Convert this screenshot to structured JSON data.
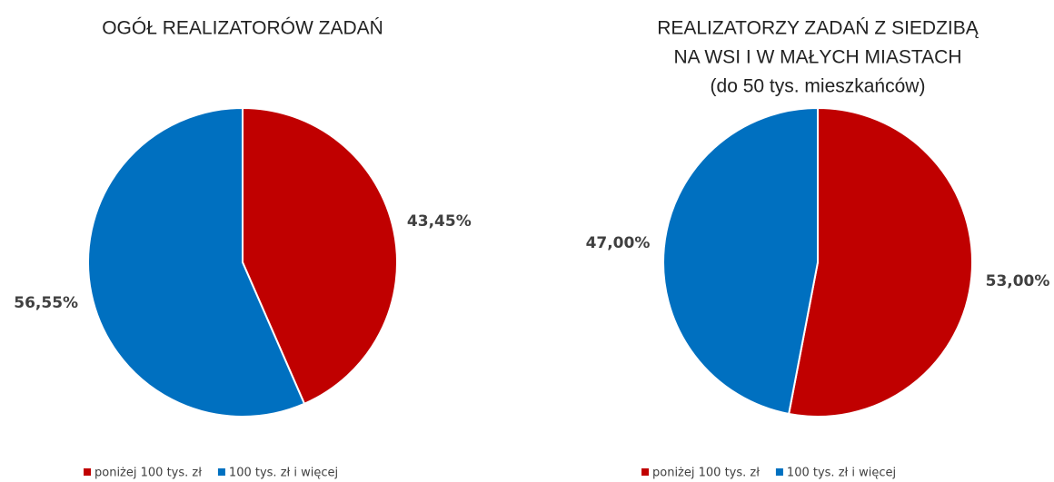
{
  "chart_data": [
    {
      "type": "pie",
      "title": [
        "OGÓŁ REALIZATORÓW ZADAŃ"
      ],
      "categories": [
        "poniżej 100 tys. zł",
        "100 tys. zł i więcej"
      ],
      "values": [
        43.45,
        56.55
      ],
      "value_labels": [
        "43,45%",
        "56,55%"
      ],
      "colors": [
        "#c00000",
        "#0070c0"
      ]
    },
    {
      "type": "pie",
      "title": [
        "REALIZATORZY ZADAŃ Z SIEDZIBĄ",
        "NA WSI I W MAŁYCH MIASTACH",
        "(do 50 tys. mieszkańców)"
      ],
      "categories": [
        "poniżej 100 tys. zł",
        "100 tys. zł i więcej"
      ],
      "values": [
        53.0,
        47.0
      ],
      "value_labels": [
        "53,00%",
        "47,00%"
      ],
      "colors": [
        "#c00000",
        "#0070c0"
      ]
    }
  ]
}
